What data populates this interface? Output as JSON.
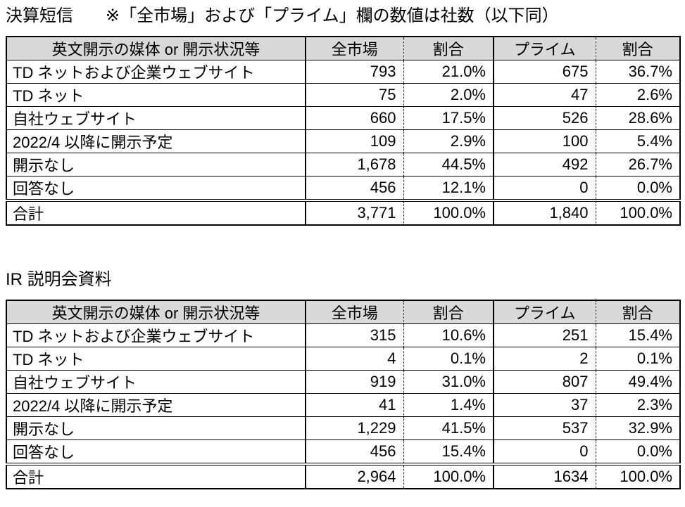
{
  "colors": {
    "header_bg": "#d9d9d9",
    "border": "#000000",
    "text": "#000000",
    "background": "#ffffff"
  },
  "sections": [
    {
      "title": "決算短信",
      "note": "※「全市場」および「プライム」欄の数値は社数（以下同）",
      "table": {
        "columns": [
          "英文開示の媒体 or 開示状況等",
          "全市場",
          "割合",
          "プライム",
          "割合"
        ],
        "rows": [
          [
            "TD ネットおよび企業ウェブサイト",
            "793",
            "21.0%",
            "675",
            "36.7%"
          ],
          [
            "TD ネット",
            "75",
            "2.0%",
            "47",
            "2.6%"
          ],
          [
            "自社ウェブサイト",
            "660",
            "17.5%",
            "526",
            "28.6%"
          ],
          [
            "2022/4 以降に開示予定",
            "109",
            "2.9%",
            "100",
            "5.4%"
          ],
          [
            "開示なし",
            "1,678",
            "44.5%",
            "492",
            "26.7%"
          ],
          [
            "回答なし",
            "456",
            "12.1%",
            "0",
            "0.0%"
          ]
        ],
        "total": [
          "合計",
          "3,771",
          "100.0%",
          "1,840",
          "100.0%"
        ]
      }
    },
    {
      "title": "IR 説明会資料",
      "note": "",
      "table": {
        "columns": [
          "英文開示の媒体 or 開示状況等",
          "全市場",
          "割合",
          "プライム",
          "割合"
        ],
        "rows": [
          [
            "TD ネットおよび企業ウェブサイト",
            "315",
            "10.6%",
            "251",
            "15.4%"
          ],
          [
            "TD ネット",
            "4",
            "0.1%",
            "2",
            "0.1%"
          ],
          [
            "自社ウェブサイト",
            "919",
            "31.0%",
            "807",
            "49.4%"
          ],
          [
            "2022/4 以降に開示予定",
            "41",
            "1.4%",
            "37",
            "2.3%"
          ],
          [
            "開示なし",
            "1,229",
            "41.5%",
            "537",
            "32.9%"
          ],
          [
            "回答なし",
            "456",
            "15.4%",
            "0",
            "0.0%"
          ]
        ],
        "total": [
          "合計",
          "2,964",
          "100.0%",
          "1634",
          "100.0%"
        ]
      }
    }
  ]
}
